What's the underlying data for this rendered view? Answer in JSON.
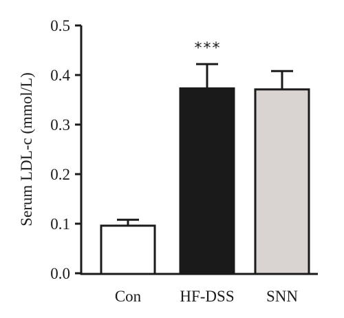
{
  "chart_data": {
    "type": "bar",
    "title": "",
    "xlabel": "",
    "ylabel": "Serum LDL-c (mmol/L)",
    "ylim": [
      0,
      0.5
    ],
    "yticks": [
      "0.0",
      "0.1",
      "0.2",
      "0.3",
      "0.4",
      "0.5"
    ],
    "categories": [
      "Con",
      "HF-DSS",
      "SNN"
    ],
    "values": [
      0.096,
      0.373,
      0.371
    ],
    "errors": [
      0.012,
      0.049,
      0.037
    ],
    "annotations": [
      "",
      "***",
      ""
    ],
    "colors": {
      "Con": "#ffffff",
      "HF-DSS": "#1a1a1a",
      "SNN": "#d9d4d2"
    },
    "stroke": "#1a1a1a",
    "grid": false,
    "legend": "none"
  }
}
